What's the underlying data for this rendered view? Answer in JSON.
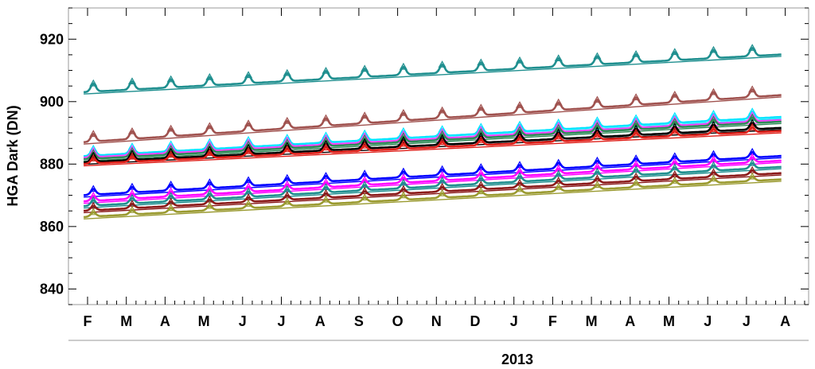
{
  "chart_data": {
    "type": "line",
    "ylabel": "HGA Dark (DN)",
    "year_label": "2013",
    "ylim": [
      835,
      930
    ],
    "xlim_months": [
      0,
      18.5
    ],
    "y_ticks": [
      840,
      860,
      880,
      900,
      920
    ],
    "month_ticks": [
      "F",
      "M",
      "A",
      "M",
      "J",
      "J",
      "A",
      "S",
      "O",
      "N",
      "D",
      "J",
      "F",
      "M",
      "A",
      "M",
      "J",
      "J",
      "A"
    ],
    "grid": false,
    "series_notes": "Each series: data (symbols with monthly peaks) plus a linear trend line",
    "series": [
      {
        "color": "#1f8f8f",
        "start": 902.5,
        "end": 914.5,
        "peak_amp": 2.6
      },
      {
        "color": "#a0524f",
        "start": 886.5,
        "end": 901.5,
        "peak_amp": 2.4
      },
      {
        "color": "#00e5ff",
        "start": 882.0,
        "end": 894.5,
        "peak_amp": 2.2
      },
      {
        "color": "#ff40ff",
        "start": 881.5,
        "end": 893.5,
        "peak_amp": 2.0
      },
      {
        "color": "#2e8b57",
        "start": 881.0,
        "end": 893.0,
        "peak_amp": 1.8
      },
      {
        "color": "#000000",
        "start": 880.0,
        "end": 891.0,
        "peak_amp": 2.0
      },
      {
        "color": "#e0201a",
        "start": 879.5,
        "end": 890.0,
        "peak_amp": 1.6
      },
      {
        "color": "#0000ff",
        "start": 869.5,
        "end": 882.0,
        "peak_amp": 1.8
      },
      {
        "color": "#ff00ff",
        "start": 867.5,
        "end": 880.5,
        "peak_amp": 1.6
      },
      {
        "color": "#1f8f8f",
        "start": 866.0,
        "end": 878.5,
        "peak_amp": 1.7
      },
      {
        "color": "#8b1a1a",
        "start": 864.5,
        "end": 876.5,
        "peak_amp": 1.4
      },
      {
        "color": "#9a9a30",
        "start": 862.5,
        "end": 874.5,
        "peak_amp": 1.4
      }
    ]
  }
}
